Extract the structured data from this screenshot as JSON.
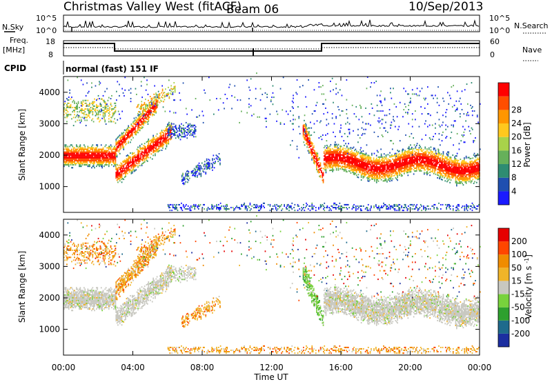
{
  "header": {
    "station": "Christmas Valley West (fitACF)",
    "beam": "Beam 06",
    "date": "10/Sep/2013"
  },
  "top_panels": {
    "nsky_label": "N.Sky",
    "nsky_ticks": [
      "10^5",
      "10^0"
    ],
    "nsearch_label": "N.Search",
    "nsearch_ticks": [
      "10^5",
      "10^0"
    ],
    "freq_label": "Freq.",
    "freq_unit": "[MHz]",
    "freq_ticks": [
      "18",
      "8"
    ],
    "nave_label": "Nave",
    "nave_ticks": [
      "60",
      "0"
    ],
    "cpid_label": "CPID",
    "cpid_text": "normal (fast) 151 IF"
  },
  "chart_data": [
    {
      "type": "heatmap",
      "name": "power",
      "ylabel": "Slant Range [km]",
      "yticks": [
        "1000",
        "2000",
        "3000",
        "4000"
      ],
      "ylim": [
        180,
        4500
      ],
      "colorbar_label": "Power [dB]",
      "colorbar_ticks": [
        "4",
        "8",
        "12",
        "16",
        "20",
        "24",
        "28"
      ],
      "colors": [
        "#1a1aff",
        "#1f4fb0",
        "#2e8c72",
        "#66b05a",
        "#a8d24a",
        "#ffc81e",
        "#ff9600",
        "#ff4e00",
        "#ff0000"
      ]
    },
    {
      "type": "heatmap",
      "name": "velocity",
      "ylabel": "Slant Range [km]",
      "yticks": [
        "1000",
        "2000",
        "3000",
        "4000"
      ],
      "ylim": [
        180,
        4500
      ],
      "colorbar_label": "Velocity [m s^-1]",
      "colorbar_ticks": [
        "200",
        "100",
        "50",
        "15",
        "-15",
        "-50",
        "-100",
        "-200"
      ],
      "colors": [
        "#1c2ea0",
        "#1f6a8c",
        "#2ea02e",
        "#78d23c",
        "#c8c8c0",
        "#f0b428",
        "#f08c00",
        "#ff4600",
        "#e60000"
      ]
    }
  ],
  "xaxis": {
    "label": "Time UT",
    "ticks": [
      "00:00",
      "04:00",
      "08:00",
      "12:00",
      "16:00",
      "20:00",
      "00:00"
    ]
  }
}
